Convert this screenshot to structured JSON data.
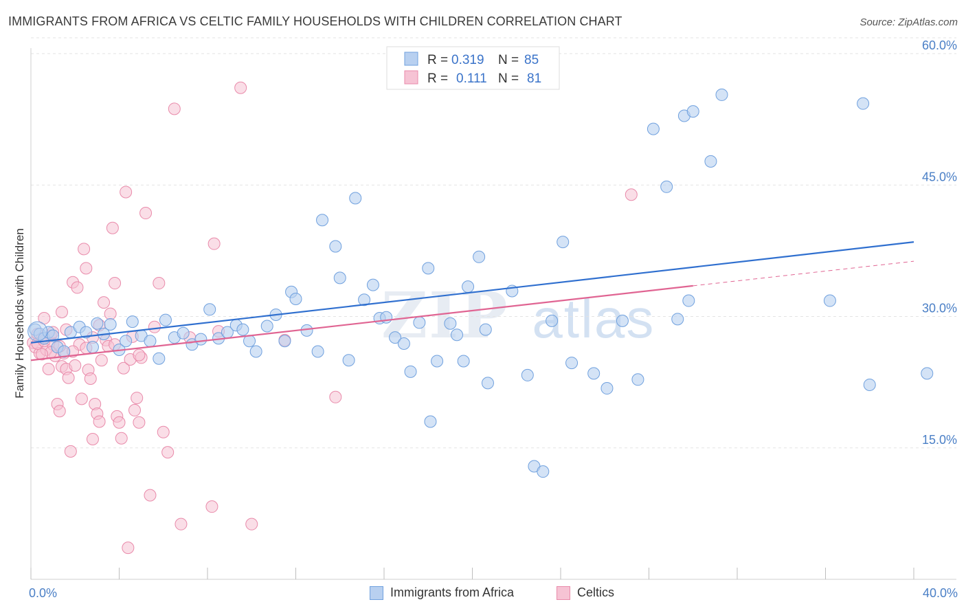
{
  "title": "IMMIGRANTS FROM AFRICA VS CELTIC FAMILY HOUSEHOLDS WITH CHILDREN CORRELATION CHART",
  "source": "Source: ZipAtlas.com",
  "watermark": {
    "zip": "ZIP",
    "atlas": "atlas"
  },
  "colors": {
    "africa": "#6fa0de",
    "africa_fill": "#b8d0f0",
    "africa_line": "#2f6fcf",
    "celtics": "#e98aaa",
    "celtics_fill": "#f6c3d4",
    "celtics_line": "#e06492",
    "axis_text": "#4a7fc6",
    "grid": "#e3e3e3"
  },
  "legend": {
    "rows": [
      {
        "r_label": "R =",
        "r_value": "0.319",
        "n_label": "N =",
        "n_value": "85"
      },
      {
        "r_label": "R =",
        "r_value": "0.111",
        "n_label": "N =",
        "n_value": "81"
      }
    ]
  },
  "bottom_legend": {
    "africa": "Immigrants from Africa",
    "celtics": "Celtics"
  },
  "chart_data": {
    "type": "scatter",
    "title": "IMMIGRANTS FROM AFRICA VS CELTIC FAMILY HOUSEHOLDS WITH CHILDREN CORRELATION CHART",
    "xlabel": "",
    "ylabel": "Family Households with Children",
    "xlim": [
      0,
      40
    ],
    "ylim": [
      0,
      62
    ],
    "x_tick_labels": [
      "0.0%",
      "40.0%"
    ],
    "y_ticks": [
      15,
      30,
      45,
      60
    ],
    "y_tick_labels": [
      "15.0%",
      "30.0%",
      "45.0%",
      "60.0%"
    ],
    "grid": true,
    "legend_position": "top-center",
    "series": [
      {
        "name": "Immigrants from Africa",
        "r": 0.319,
        "n": 85,
        "trend": {
          "x": [
            0,
            40
          ],
          "y": [
            27.0,
            38.5
          ]
        },
        "points": [
          [
            0.2,
            28.5
          ],
          [
            0.4,
            28
          ],
          [
            0.6,
            27.5
          ],
          [
            0.8,
            28.2
          ],
          [
            1.0,
            27.8
          ],
          [
            1.2,
            26.5
          ],
          [
            1.5,
            26.0
          ],
          [
            1.8,
            28.2
          ],
          [
            2.2,
            28.8
          ],
          [
            2.5,
            28.2
          ],
          [
            2.8,
            26.5
          ],
          [
            3.0,
            29.2
          ],
          [
            3.3,
            28.0
          ],
          [
            3.6,
            29.1
          ],
          [
            4.0,
            26.2
          ],
          [
            4.3,
            27.2
          ],
          [
            4.6,
            29.4
          ],
          [
            5.0,
            27.8
          ],
          [
            5.4,
            27.2
          ],
          [
            5.8,
            25.2
          ],
          [
            6.1,
            29.6
          ],
          [
            6.5,
            27.6
          ],
          [
            6.9,
            28.1
          ],
          [
            7.3,
            26.8
          ],
          [
            7.7,
            27.4
          ],
          [
            8.1,
            30.8
          ],
          [
            8.5,
            27.5
          ],
          [
            8.9,
            28.2
          ],
          [
            9.3,
            29.0
          ],
          [
            9.6,
            28.5
          ],
          [
            9.9,
            27.2
          ],
          [
            10.2,
            26.0
          ],
          [
            10.7,
            28.9
          ],
          [
            11.1,
            30.2
          ],
          [
            11.5,
            27.2
          ],
          [
            11.8,
            32.8
          ],
          [
            12.0,
            32.0
          ],
          [
            12.5,
            28.4
          ],
          [
            13.0,
            26.0
          ],
          [
            13.2,
            41.0
          ],
          [
            13.8,
            38.0
          ],
          [
            14.0,
            34.4
          ],
          [
            14.4,
            25.0
          ],
          [
            14.7,
            43.5
          ],
          [
            15.1,
            31.9
          ],
          [
            15.5,
            33.6
          ],
          [
            15.8,
            29.8
          ],
          [
            16.1,
            29.9
          ],
          [
            16.5,
            27.6
          ],
          [
            16.9,
            26.9
          ],
          [
            17.2,
            23.7
          ],
          [
            18.0,
            35.5
          ],
          [
            17.6,
            29.3
          ],
          [
            18.1,
            18.0
          ],
          [
            18.4,
            24.9
          ],
          [
            19.0,
            29.2
          ],
          [
            19.3,
            27.9
          ],
          [
            19.6,
            24.9
          ],
          [
            19.8,
            33.4
          ],
          [
            20.3,
            36.8
          ],
          [
            20.7,
            22.4
          ],
          [
            20.6,
            28.5
          ],
          [
            21.8,
            32.9
          ],
          [
            22.5,
            23.3
          ],
          [
            22.8,
            12.9
          ],
          [
            23.2,
            12.3
          ],
          [
            23.6,
            29.5
          ],
          [
            24.1,
            38.5
          ],
          [
            24.5,
            24.7
          ],
          [
            25.5,
            23.5
          ],
          [
            26.1,
            21.8
          ],
          [
            26.8,
            29.5
          ],
          [
            27.5,
            22.8
          ],
          [
            28.2,
            51.4
          ],
          [
            28.8,
            44.8
          ],
          [
            29.3,
            29.7
          ],
          [
            29.6,
            52.9
          ],
          [
            30.0,
            53.4
          ],
          [
            30.8,
            47.7
          ],
          [
            31.3,
            55.3
          ],
          [
            37.7,
            54.3
          ],
          [
            29.8,
            31.8
          ],
          [
            36.2,
            31.8
          ],
          [
            38.0,
            22.2
          ],
          [
            40.6,
            23.5
          ]
        ]
      },
      {
        "name": "Celtics",
        "r": 0.111,
        "n": 81,
        "trend": {
          "x": [
            0,
            30
          ],
          "y": [
            25.0,
            33.5
          ]
        },
        "trend_dashed": {
          "x": [
            30,
            40
          ],
          "y": [
            33.5,
            36.3
          ]
        },
        "points": [
          [
            0.1,
            27.0
          ],
          [
            0.2,
            26.5
          ],
          [
            0.3,
            28.0
          ],
          [
            0.4,
            25.8
          ],
          [
            0.5,
            27.5
          ],
          [
            0.6,
            29.8
          ],
          [
            0.7,
            26.2
          ],
          [
            0.8,
            24.0
          ],
          [
            0.9,
            27.8
          ],
          [
            1.0,
            26.8
          ],
          [
            1.1,
            25.5
          ],
          [
            1.2,
            20.0
          ],
          [
            1.3,
            19.2
          ],
          [
            1.4,
            24.3
          ],
          [
            1.5,
            25.8
          ],
          [
            1.6,
            24.0
          ],
          [
            1.7,
            23.0
          ],
          [
            1.8,
            14.6
          ],
          [
            1.9,
            33.9
          ],
          [
            2.0,
            24.4
          ],
          [
            2.1,
            33.3
          ],
          [
            2.2,
            26.8
          ],
          [
            2.3,
            20.6
          ],
          [
            2.4,
            37.7
          ],
          [
            2.5,
            35.5
          ],
          [
            2.6,
            23.9
          ],
          [
            2.7,
            22.9
          ],
          [
            2.8,
            16.0
          ],
          [
            2.9,
            20.0
          ],
          [
            3.0,
            18.9
          ],
          [
            3.1,
            18.0
          ],
          [
            3.2,
            25.0
          ],
          [
            3.3,
            31.6
          ],
          [
            3.4,
            27.3
          ],
          [
            3.5,
            26.6
          ],
          [
            3.6,
            30.3
          ],
          [
            3.7,
            40.1
          ],
          [
            3.8,
            33.8
          ],
          [
            3.9,
            18.6
          ],
          [
            4.0,
            17.9
          ],
          [
            4.1,
            16.1
          ],
          [
            4.2,
            24.1
          ],
          [
            4.3,
            44.2
          ],
          [
            4.4,
            3.6
          ],
          [
            4.5,
            25.1
          ],
          [
            4.6,
            27.7
          ],
          [
            4.7,
            19.3
          ],
          [
            4.8,
            20.7
          ],
          [
            4.9,
            17.9
          ],
          [
            5.0,
            25.3
          ],
          [
            5.2,
            41.8
          ],
          [
            5.4,
            9.6
          ],
          [
            5.6,
            28.8
          ],
          [
            5.8,
            33.8
          ],
          [
            6.0,
            16.8
          ],
          [
            6.2,
            14.5
          ],
          [
            6.5,
            53.7
          ],
          [
            6.8,
            6.3
          ],
          [
            7.2,
            27.6
          ],
          [
            8.3,
            38.3
          ],
          [
            8.2,
            8.3
          ],
          [
            8.5,
            28.3
          ],
          [
            9.5,
            56.1
          ],
          [
            10.0,
            6.3
          ],
          [
            11.5,
            27.3
          ],
          [
            13.8,
            20.8
          ],
          [
            27.2,
            43.9
          ],
          [
            1.3,
            26.6
          ],
          [
            1.6,
            28.5
          ],
          [
            0.9,
            25.9
          ],
          [
            0.5,
            25.7
          ],
          [
            1.0,
            28.2
          ],
          [
            2.8,
            27.6
          ],
          [
            3.1,
            29.0
          ],
          [
            0.3,
            26.9
          ],
          [
            0.6,
            27.2
          ],
          [
            1.9,
            26.0
          ],
          [
            2.5,
            26.4
          ],
          [
            3.8,
            26.8
          ],
          [
            4.9,
            25.6
          ],
          [
            1.4,
            30.5
          ]
        ]
      }
    ]
  }
}
